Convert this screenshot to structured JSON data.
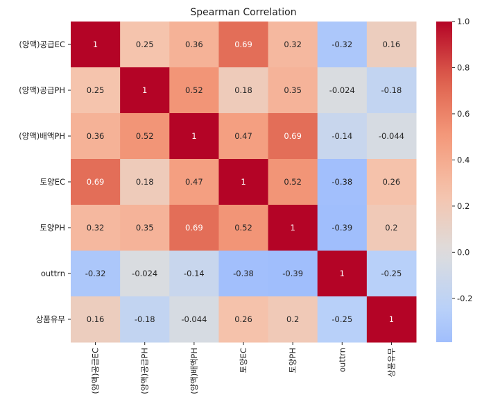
{
  "chart_data": {
    "type": "heatmap",
    "title": "Spearman Correlation",
    "xlabel": "",
    "ylabel": "",
    "labels": [
      "(양액)공급EC",
      "(양액)공급PH",
      "(양액)배액PH",
      "토양EC",
      "토양PH",
      "outtrn",
      "상품유무"
    ],
    "matrix": [
      [
        1,
        0.25,
        0.36,
        0.69,
        0.32,
        -0.32,
        0.16
      ],
      [
        0.25,
        1,
        0.52,
        0.18,
        0.35,
        -0.024,
        -0.18
      ],
      [
        0.36,
        0.52,
        1,
        0.47,
        0.69,
        -0.14,
        -0.044
      ],
      [
        0.69,
        0.18,
        0.47,
        1,
        0.52,
        -0.38,
        0.26
      ],
      [
        0.32,
        0.35,
        0.69,
        0.52,
        1,
        -0.39,
        0.2
      ],
      [
        -0.32,
        -0.024,
        -0.14,
        -0.38,
        -0.39,
        1,
        -0.25
      ],
      [
        0.16,
        -0.18,
        -0.044,
        0.26,
        0.2,
        -0.25,
        1
      ]
    ],
    "cell_labels": [
      [
        "1",
        "0.25",
        "0.36",
        "0.69",
        "0.32",
        "-0.32",
        "0.16"
      ],
      [
        "0.25",
        "1",
        "0.52",
        "0.18",
        "0.35",
        "-0.024",
        "-0.18"
      ],
      [
        "0.36",
        "0.52",
        "1",
        "0.47",
        "0.69",
        "-0.14",
        "-0.044"
      ],
      [
        "0.69",
        "0.18",
        "0.47",
        "1",
        "0.52",
        "-0.38",
        "0.26"
      ],
      [
        "0.32",
        "0.35",
        "0.69",
        "0.52",
        "1",
        "-0.39",
        "0.2"
      ],
      [
        "-0.32",
        "-0.024",
        "-0.14",
        "-0.38",
        "-0.39",
        "1",
        "-0.25"
      ],
      [
        "0.16",
        "-0.18",
        "-0.044",
        "0.26",
        "0.2",
        "-0.25",
        "1"
      ]
    ],
    "colormap": "coolwarm",
    "colorbar": {
      "range": [
        -0.39,
        1.0
      ],
      "center": 0.0,
      "ticks": [
        1.0,
        0.8,
        0.6,
        0.4,
        0.2,
        0.0,
        -0.2
      ],
      "tick_labels": [
        "1.0",
        "0.8",
        "0.6",
        "0.4",
        "0.2",
        "0.0",
        "-0.2"
      ],
      "placement": "right"
    },
    "grid": false
  }
}
